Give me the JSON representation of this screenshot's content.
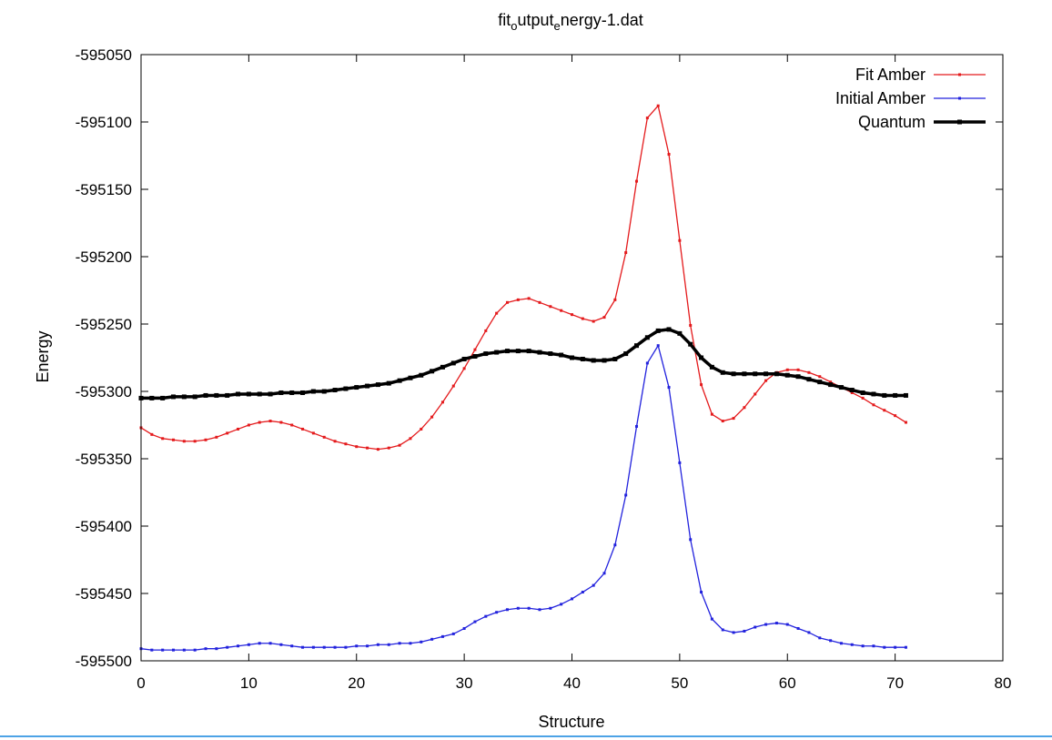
{
  "chart_data": {
    "type": "line",
    "title_parts": [
      "fit",
      "o",
      "utput",
      "e",
      "nergy-1.dat"
    ],
    "xlabel": "Structure",
    "ylabel": "Energy",
    "xlim": [
      0,
      80
    ],
    "ylim": [
      -595500,
      -595050
    ],
    "xticks": [
      0,
      10,
      20,
      30,
      40,
      50,
      60,
      70,
      80
    ],
    "yticks": [
      -595500,
      -595450,
      -595400,
      -595350,
      -595300,
      -595250,
      -595200,
      -595150,
      -595100,
      -595050
    ],
    "xtick_labels": [
      "0",
      "10",
      "20",
      "30",
      "40",
      "50",
      "60",
      "70",
      "80"
    ],
    "ytick_labels": [
      "-595500",
      "-595450",
      "-595400",
      "-595350",
      "-595300",
      "-595250",
      "-595200",
      "-595150",
      "-595100",
      "-595050"
    ],
    "legend_position": "top-right",
    "x": [
      0,
      1,
      2,
      3,
      4,
      5,
      6,
      7,
      8,
      9,
      10,
      11,
      12,
      13,
      14,
      15,
      16,
      17,
      18,
      19,
      20,
      21,
      22,
      23,
      24,
      25,
      26,
      27,
      28,
      29,
      30,
      31,
      32,
      33,
      34,
      35,
      36,
      37,
      38,
      39,
      40,
      41,
      42,
      43,
      44,
      45,
      46,
      47,
      48,
      49,
      50,
      51,
      52,
      53,
      54,
      55,
      56,
      57,
      58,
      59,
      60,
      61,
      62,
      63,
      64,
      65,
      66,
      67,
      68,
      69,
      70,
      71
    ],
    "series": [
      {
        "name": "Fit Amber",
        "color": "#e41a1c",
        "values": [
          -595327,
          -595332,
          -595335,
          -595336,
          -595337,
          -595337,
          -595336,
          -595334,
          -595331,
          -595328,
          -595325,
          -595323,
          -595322,
          -595323,
          -595325,
          -595328,
          -595331,
          -595334,
          -595337,
          -595339,
          -595341,
          -595342,
          -595343,
          -595342,
          -595340,
          -595335,
          -595328,
          -595319,
          -595308,
          -595296,
          -595283,
          -595269,
          -595255,
          -595242,
          -595234,
          -595232,
          -595231,
          -595234,
          -595237,
          -595240,
          -595243,
          -595246,
          -595248,
          -595245,
          -595232,
          -595197,
          -595144,
          -595097,
          -595088,
          -595124,
          -595188,
          -595251,
          -595295,
          -595317,
          -595322,
          -595320,
          -595312,
          -595302,
          -595292,
          -595286,
          -595284,
          -595284,
          -595286,
          -595289,
          -595293,
          -595297,
          -595301,
          -595305,
          -595310,
          -595314,
          -595318,
          -595323
        ]
      },
      {
        "name": "Initial Amber",
        "color": "#2222dd",
        "values": [
          -595491,
          -595492,
          -595492,
          -595492,
          -595492,
          -595492,
          -595491,
          -595491,
          -595490,
          -595489,
          -595488,
          -595487,
          -595487,
          -595488,
          -595489,
          -595490,
          -595490,
          -595490,
          -595490,
          -595490,
          -595489,
          -595489,
          -595488,
          -595488,
          -595487,
          -595487,
          -595486,
          -595484,
          -595482,
          -595480,
          -595476,
          -595471,
          -595467,
          -595464,
          -595462,
          -595461,
          -595461,
          -595462,
          -595461,
          -595458,
          -595454,
          -595449,
          -595444,
          -595435,
          -595414,
          -595377,
          -595326,
          -595279,
          -595266,
          -595297,
          -595353,
          -595410,
          -595449,
          -595469,
          -595477,
          -595479,
          -595478,
          -595475,
          -595473,
          -595472,
          -595473,
          -595476,
          -595479,
          -595483,
          -595485,
          -595487,
          -595488,
          -595489,
          -595489,
          -595490,
          -595490,
          -595490
        ]
      },
      {
        "name": "Quantum",
        "color": "#000000",
        "values": [
          -595305,
          -595305,
          -595305,
          -595304,
          -595304,
          -595304,
          -595303,
          -595303,
          -595303,
          -595302,
          -595302,
          -595302,
          -595302,
          -595301,
          -595301,
          -595301,
          -595300,
          -595300,
          -595299,
          -595298,
          -595297,
          -595296,
          -595295,
          -595294,
          -595292,
          -595290,
          -595288,
          -595285,
          -595282,
          -595279,
          -595276,
          -595274,
          -595272,
          -595271,
          -595270,
          -595270,
          -595270,
          -595271,
          -595272,
          -595273,
          -595275,
          -595276,
          -595277,
          -595277,
          -595276,
          -595272,
          -595266,
          -595260,
          -595255,
          -595254,
          -595257,
          -595265,
          -595275,
          -595282,
          -595286,
          -595287,
          -595287,
          -595287,
          -595287,
          -595287,
          -595288,
          -595289,
          -595291,
          -595293,
          -595295,
          -595297,
          -595299,
          -595301,
          -595302,
          -595303,
          -595303,
          -595303
        ]
      }
    ]
  }
}
